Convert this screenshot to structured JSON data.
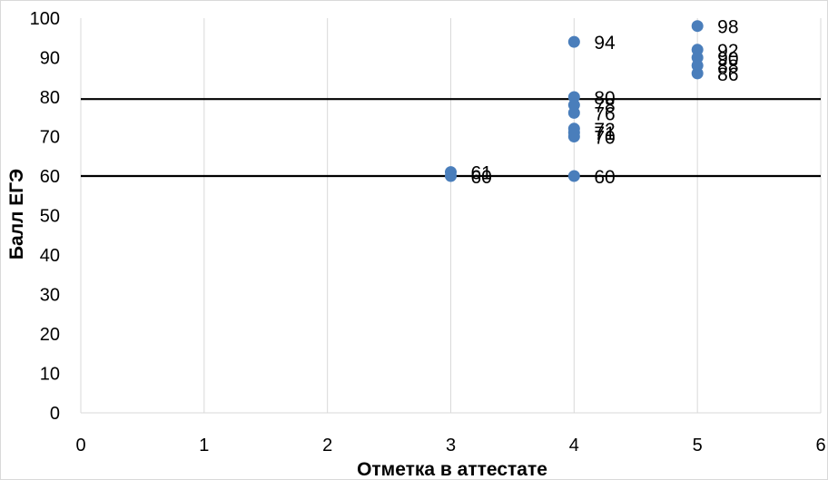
{
  "chart_data": {
    "type": "scatter",
    "title": "",
    "xlabel": "Отметка в аттестате",
    "ylabel": "Балл ЕГЭ",
    "xlim": [
      0,
      6
    ],
    "ylim": [
      0,
      100
    ],
    "x_ticks": [
      "0",
      "1",
      "2",
      "3",
      "4",
      "5",
      "6"
    ],
    "y_ticks": [
      "0",
      "10",
      "20",
      "30",
      "40",
      "50",
      "60",
      "70",
      "80",
      "90",
      "100"
    ],
    "grid": "vertical",
    "reference_lines_y": [
      60,
      79.5
    ],
    "point_color": "#4a7ebb",
    "series": [
      {
        "points": [
          {
            "x": 3,
            "y": 61,
            "label": "61"
          },
          {
            "x": 3,
            "y": 60,
            "label": "60"
          },
          {
            "x": 4,
            "y": 94,
            "label": "94"
          },
          {
            "x": 4,
            "y": 80,
            "label": "80"
          },
          {
            "x": 4,
            "y": 78,
            "label": "78"
          },
          {
            "x": 4,
            "y": 76,
            "label": "76"
          },
          {
            "x": 4,
            "y": 72,
            "label": "72"
          },
          {
            "x": 4,
            "y": 71,
            "label": "71"
          },
          {
            "x": 4,
            "y": 70,
            "label": "70"
          },
          {
            "x": 4,
            "y": 60,
            "label": "60"
          },
          {
            "x": 5,
            "y": 98,
            "label": "98"
          },
          {
            "x": 5,
            "y": 92,
            "label": "92"
          },
          {
            "x": 5,
            "y": 90,
            "label": "90"
          },
          {
            "x": 5,
            "y": 88,
            "label": "88"
          },
          {
            "x": 5,
            "y": 86,
            "label": "86"
          }
        ]
      }
    ]
  }
}
